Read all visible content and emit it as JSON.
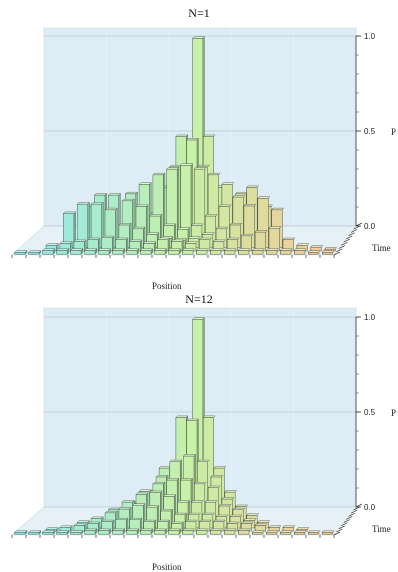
{
  "chart_data": [
    {
      "type": "bar3d",
      "title": "N=1",
      "xlabel": "Position",
      "ylabel": "Time",
      "zlabel": "P",
      "zlim": [
        0,
        1.0
      ],
      "zticks": [
        "0.0",
        "0.5",
        "1.0"
      ],
      "rows": [
        [
          0,
          0,
          0,
          0,
          0,
          0,
          0,
          0,
          0,
          0,
          0,
          1.0,
          0,
          0,
          0,
          0,
          0,
          0,
          0,
          0,
          0,
          0,
          0
        ],
        [
          0,
          0,
          0,
          0,
          0,
          0,
          0,
          0,
          0,
          0,
          0.5,
          0,
          0.5,
          0,
          0,
          0,
          0,
          0,
          0,
          0,
          0,
          0,
          0
        ],
        [
          0,
          0,
          0,
          0,
          0,
          0,
          0,
          0,
          0,
          0.25,
          0,
          0.5,
          0,
          0.25,
          0,
          0,
          0,
          0,
          0,
          0,
          0,
          0,
          0
        ],
        [
          0,
          0,
          0,
          0,
          0,
          0,
          0,
          0,
          0.125,
          0,
          0.375,
          0,
          0.375,
          0,
          0.125,
          0,
          0,
          0,
          0,
          0,
          0,
          0,
          0
        ],
        [
          0,
          0,
          0,
          0,
          0,
          0,
          0.06,
          0.25,
          0.3,
          0.35,
          0.38,
          0.4,
          0.38,
          0.35,
          0.3,
          0.25,
          0.06,
          0,
          0,
          0,
          0,
          0,
          0
        ],
        [
          0,
          0,
          0,
          0,
          0.2,
          0.26,
          0.26,
          0.23,
          0.2,
          0.15,
          0.1,
          0.08,
          0.1,
          0.15,
          0.2,
          0.25,
          0.3,
          0.2,
          0,
          0,
          0,
          0,
          0
        ],
        [
          0,
          0,
          0,
          0.18,
          0.23,
          0.23,
          0.2,
          0.12,
          0.1,
          0.07,
          0.05,
          0.04,
          0.05,
          0.07,
          0.1,
          0.12,
          0.22,
          0.26,
          0.2,
          0,
          0,
          0,
          0
        ],
        [
          0,
          0,
          0.03,
          0.04,
          0.05,
          0.06,
          0.07,
          0.06,
          0.05,
          0.04,
          0.06,
          0.05,
          0.04,
          0.06,
          0.05,
          0.06,
          0.08,
          0.1,
          0.12,
          0.06,
          0.03,
          0.02,
          0.01
        ],
        [
          0.01,
          0.01,
          0.02,
          0.02,
          0.02,
          0.02,
          0.02,
          0.02,
          0.02,
          0.02,
          0.02,
          0.02,
          0.02,
          0.02,
          0.02,
          0.02,
          0.02,
          0.02,
          0.02,
          0.02,
          0.02,
          0.01,
          0.01
        ]
      ]
    },
    {
      "type": "bar3d",
      "title": "N=12",
      "xlabel": "Position",
      "ylabel": "Time",
      "zlabel": "P",
      "zlim": [
        0,
        1.0
      ],
      "zticks": [
        "0.0",
        "0.5",
        "1.0"
      ],
      "rows": [
        [
          0,
          0,
          0,
          0,
          0,
          0,
          0,
          0,
          0,
          0,
          0,
          1.0,
          0,
          0,
          0,
          0,
          0,
          0,
          0,
          0,
          0,
          0,
          0
        ],
        [
          0,
          0,
          0,
          0,
          0,
          0,
          0,
          0,
          0,
          0,
          0.5,
          0,
          0.5,
          0,
          0,
          0,
          0,
          0,
          0,
          0,
          0,
          0,
          0
        ],
        [
          0,
          0,
          0,
          0,
          0,
          0,
          0,
          0,
          0,
          0.25,
          0,
          0.5,
          0,
          0.25,
          0,
          0,
          0,
          0,
          0,
          0,
          0,
          0,
          0
        ],
        [
          0,
          0,
          0,
          0,
          0,
          0,
          0,
          0,
          0.14,
          0.22,
          0.3,
          0.33,
          0.3,
          0.22,
          0.14,
          0,
          0,
          0,
          0,
          0,
          0,
          0,
          0
        ],
        [
          0,
          0,
          0,
          0,
          0,
          0,
          0,
          0.1,
          0.16,
          0.2,
          0.22,
          0.22,
          0.2,
          0.18,
          0.12,
          0.08,
          0,
          0,
          0,
          0,
          0,
          0,
          0
        ],
        [
          0,
          0,
          0,
          0,
          0,
          0,
          0.08,
          0.12,
          0.16,
          0.17,
          0.15,
          0.12,
          0.12,
          0.12,
          0.1,
          0.08,
          0.05,
          0,
          0,
          0,
          0,
          0,
          0
        ],
        [
          0,
          0,
          0,
          0,
          0.03,
          0.05,
          0.08,
          0.1,
          0.12,
          0.11,
          0.09,
          0.07,
          0.07,
          0.07,
          0.06,
          0.06,
          0.04,
          0.03,
          0,
          0,
          0,
          0,
          0
        ],
        [
          0,
          0,
          0.01,
          0.02,
          0.03,
          0.04,
          0.05,
          0.06,
          0.06,
          0.05,
          0.05,
          0.04,
          0.05,
          0.05,
          0.05,
          0.04,
          0.04,
          0.03,
          0.02,
          0.02,
          0.01,
          0,
          0
        ],
        [
          0.01,
          0.01,
          0.01,
          0.01,
          0.01,
          0.02,
          0.02,
          0.02,
          0.02,
          0.02,
          0.02,
          0.02,
          0.02,
          0.02,
          0.02,
          0.02,
          0.02,
          0.01,
          0.01,
          0.01,
          0.01,
          0.01,
          0.01
        ]
      ]
    }
  ],
  "colors": {
    "back_wall": "#ddecf5",
    "floor": "#e6f1f7",
    "gridline": "#b9c9d4",
    "bar_left": "#8ee8f0",
    "bar_mid": "#c8f0a8",
    "bar_right": "#f6c796",
    "bar_edge": "#3a4a3a"
  }
}
